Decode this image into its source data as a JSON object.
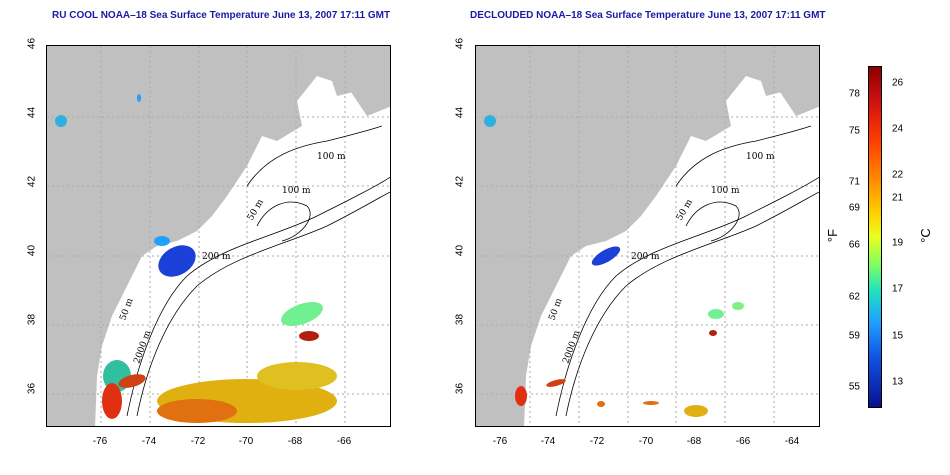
{
  "left_panel": {
    "title": "RU COOL NOAA–18 Sea Surface Temperature June 13, 2007 17:11 GMT"
  },
  "right_panel": {
    "title": "DECLOUDED NOAA–18 Sea Surface Temperature June 13, 2007 17:11 GMT"
  },
  "map": {
    "x_ticks": [
      "-76",
      "-74",
      "-72",
      "-70",
      "-68",
      "-66",
      "-64"
    ],
    "y_ticks": [
      "36",
      "38",
      "40",
      "42",
      "44",
      "46"
    ],
    "contour_labels": [
      "100 m",
      "100 m",
      "50 m",
      "200 m",
      "50 m",
      "2000 m"
    ],
    "land_color": "#c0c0c0",
    "grid": true
  },
  "colorbar": {
    "fahrenheit_label": "°F",
    "celsius_label": "°C",
    "fahrenheit_ticks": [
      "78",
      "75",
      "71",
      "69",
      "66",
      "62",
      "59",
      "55"
    ],
    "celsius_ticks": [
      "26",
      "24",
      "22",
      "21",
      "19",
      "17",
      "15",
      "13"
    ],
    "min_c": 12,
    "max_c": 27
  }
}
